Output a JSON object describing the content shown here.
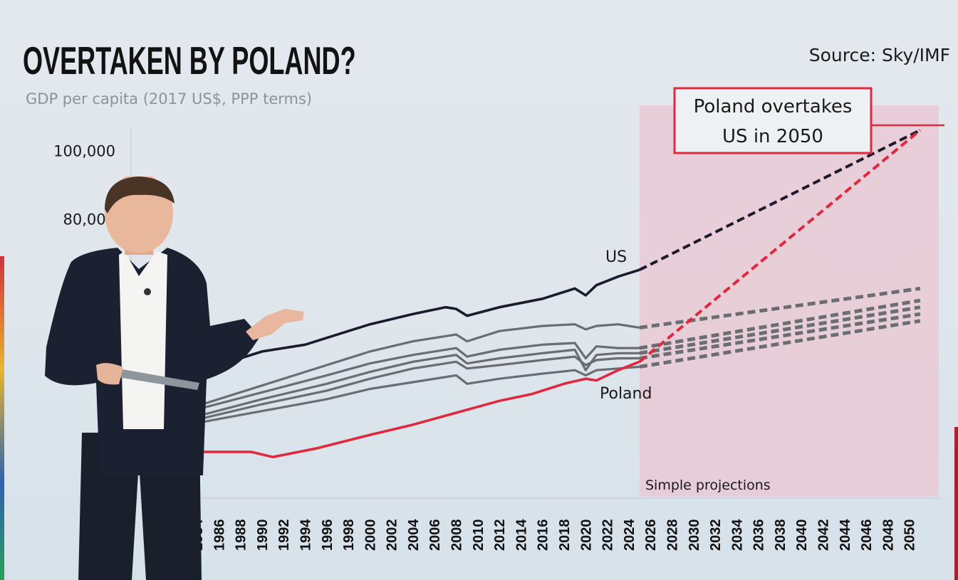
{
  "title": "OVERTAKEN BY POLAND?",
  "subtitle": "GDP per capita (2017 US$, PPP terms)",
  "source": "Source: Sky/IMF",
  "annotation": "Poland overtakes US in 2050",
  "annotation_lines": [
    "Poland overtakes",
    "US in 2050"
  ],
  "projection_label": "Simple projections",
  "colors": {
    "us": "#1c1b2e",
    "poland": "#e0283e",
    "others": "#6a6d72",
    "projection": "#e9c9d4"
  },
  "chart_data": {
    "type": "line",
    "title": "OVERTAKEN BY POLAND?",
    "subtitle": "GDP per capita (2017 US$, PPP terms)",
    "xlabel": "",
    "ylabel": "",
    "ylim": [
      0,
      115000
    ],
    "xlim": [
      1984,
      2052
    ],
    "y_ticks": [
      80000,
      100000
    ],
    "y_tick_labels": [
      "80,000",
      "100,000"
    ],
    "x_ticks": [
      1984,
      1986,
      1988,
      1990,
      1992,
      1994,
      1996,
      1998,
      2000,
      2002,
      2004,
      2006,
      2008,
      2010,
      2012,
      2014,
      2016,
      2018,
      2020,
      2022,
      2024,
      2026,
      2028,
      2030,
      2032,
      2034,
      2036,
      2038,
      2040,
      2042,
      2044,
      2046,
      2048,
      2050
    ],
    "x_tick_labels": [
      "1984",
      "1986",
      "1988",
      "1990",
      "1992",
      "1994",
      "1996",
      "1998",
      "2000",
      "2002",
      "2004",
      "2006",
      "2008",
      "2010",
      "2012",
      "2014",
      "2016",
      "2018",
      "2020",
      "2022",
      "2024",
      "2026",
      "2028",
      "2030",
      "2032",
      "2034",
      "2036",
      "2038",
      "2040",
      "2042",
      "2044",
      "2046",
      "2048",
      "2050"
    ],
    "projection_start": 2025,
    "legend": "none",
    "series": [
      {
        "name": "US",
        "role": "us",
        "x": [
          1984,
          1988,
          1990,
          1994,
          1998,
          2000,
          2004,
          2007,
          2008,
          2009,
          2012,
          2016,
          2019,
          2020,
          2021,
          2023,
          2025,
          2051
        ],
        "y": [
          36000,
          39000,
          41000,
          43000,
          47000,
          49000,
          52000,
          54000,
          53500,
          51500,
          54000,
          56500,
          59500,
          57500,
          60500,
          63000,
          65000,
          106000
        ],
        "projected_from": 2025
      },
      {
        "name": "Poland",
        "role": "poland",
        "x": [
          1984,
          1989,
          1991,
          1995,
          2000,
          2004,
          2008,
          2012,
          2015,
          2018,
          2020,
          2021,
          2023,
          2025,
          2051
        ],
        "y": [
          11500,
          11500,
          10000,
          12500,
          16500,
          19500,
          23000,
          26500,
          28500,
          31500,
          33000,
          32500,
          35500,
          38000,
          106000
        ],
        "projected_from": 2025
      },
      {
        "name": "",
        "role": "other",
        "x": [
          1984,
          1990,
          1996,
          2000,
          2004,
          2008,
          2009,
          2012,
          2016,
          2019,
          2020,
          2021,
          2023,
          2025,
          2051
        ],
        "y": [
          25000,
          31000,
          37000,
          41000,
          44000,
          46000,
          44000,
          47000,
          48500,
          49000,
          47500,
          48500,
          49000,
          48000,
          59500
        ],
        "projected_from": 2025
      },
      {
        "name": "",
        "role": "other",
        "x": [
          1984,
          1990,
          1996,
          2000,
          2004,
          2008,
          2009,
          2012,
          2016,
          2019,
          2020,
          2021,
          2023,
          2025,
          2051
        ],
        "y": [
          24000,
          29000,
          34000,
          37500,
          40000,
          42000,
          39500,
          41500,
          43000,
          43500,
          39000,
          42500,
          42000,
          42000,
          56000
        ],
        "projected_from": 2025
      },
      {
        "name": "",
        "role": "other",
        "x": [
          1984,
          1990,
          1996,
          2000,
          2004,
          2008,
          2009,
          2012,
          2016,
          2019,
          2020,
          2021,
          2023,
          2025,
          2051
        ],
        "y": [
          22000,
          27000,
          31500,
          35000,
          38000,
          40000,
          37500,
          39000,
          40500,
          41500,
          35500,
          40000,
          40500,
          40500,
          54000
        ],
        "projected_from": 2025
      },
      {
        "name": "",
        "role": "other",
        "x": [
          1984,
          1990,
          1996,
          2000,
          2004,
          2008,
          2009,
          2012,
          2016,
          2019,
          2020,
          2021,
          2023,
          2025,
          2051
        ],
        "y": [
          21000,
          25500,
          29500,
          33000,
          36000,
          38000,
          36000,
          37000,
          38500,
          39500,
          37000,
          38500,
          39000,
          39000,
          52000
        ],
        "projected_from": 2025
      },
      {
        "name": "",
        "role": "other",
        "x": [
          1984,
          1990,
          1996,
          2000,
          2004,
          2008,
          2009,
          2012,
          2016,
          2019,
          2020,
          2021,
          2023,
          2025,
          2051
        ],
        "y": [
          20000,
          23500,
          27000,
          30000,
          32000,
          34000,
          31500,
          33000,
          34500,
          35500,
          34000,
          35500,
          36000,
          36500,
          50000
        ],
        "projected_from": 2025
      }
    ],
    "annotations": [
      "Poland overtakes US in 2050",
      "Simple projections"
    ]
  }
}
